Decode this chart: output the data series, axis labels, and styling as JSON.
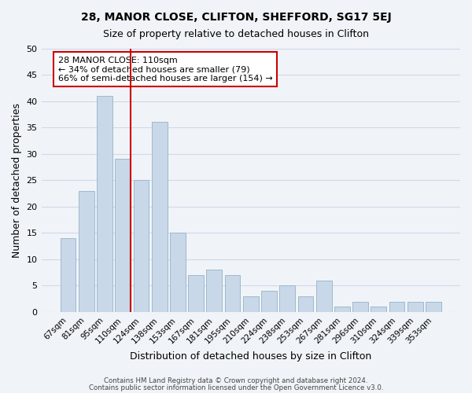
{
  "title1": "28, MANOR CLOSE, CLIFTON, SHEFFORD, SG17 5EJ",
  "title2": "Size of property relative to detached houses in Clifton",
  "xlabel": "Distribution of detached houses by size in Clifton",
  "ylabel": "Number of detached properties",
  "categories": [
    "67sqm",
    "81sqm",
    "95sqm",
    "110sqm",
    "124sqm",
    "138sqm",
    "153sqm",
    "167sqm",
    "181sqm",
    "195sqm",
    "210sqm",
    "224sqm",
    "238sqm",
    "253sqm",
    "267sqm",
    "281sqm",
    "296sqm",
    "310sqm",
    "324sqm",
    "339sqm",
    "353sqm"
  ],
  "values": [
    14,
    23,
    41,
    29,
    25,
    36,
    15,
    7,
    8,
    7,
    3,
    4,
    5,
    3,
    6,
    1,
    2,
    1,
    2,
    2,
    2
  ],
  "highlight_index": 3,
  "bar_color_normal": "#c8d8e8",
  "bar_edge_color": "#a0b8cc",
  "vline_color": "#cc0000",
  "annotation_line1": "28 MANOR CLOSE: 110sqm",
  "annotation_line2": "← 34% of detached houses are smaller (79)",
  "annotation_line3": "66% of semi-detached houses are larger (154) →",
  "annotation_box_color": "white",
  "annotation_box_edge": "#cc0000",
  "ylim": [
    0,
    50
  ],
  "yticks": [
    0,
    5,
    10,
    15,
    20,
    25,
    30,
    35,
    40,
    45,
    50
  ],
  "footnote1": "Contains HM Land Registry data © Crown copyright and database right 2024.",
  "footnote2": "Contains public sector information licensed under the Open Government Licence v3.0.",
  "background_color": "#f0f4f8",
  "grid_color": "#d0d8e8"
}
